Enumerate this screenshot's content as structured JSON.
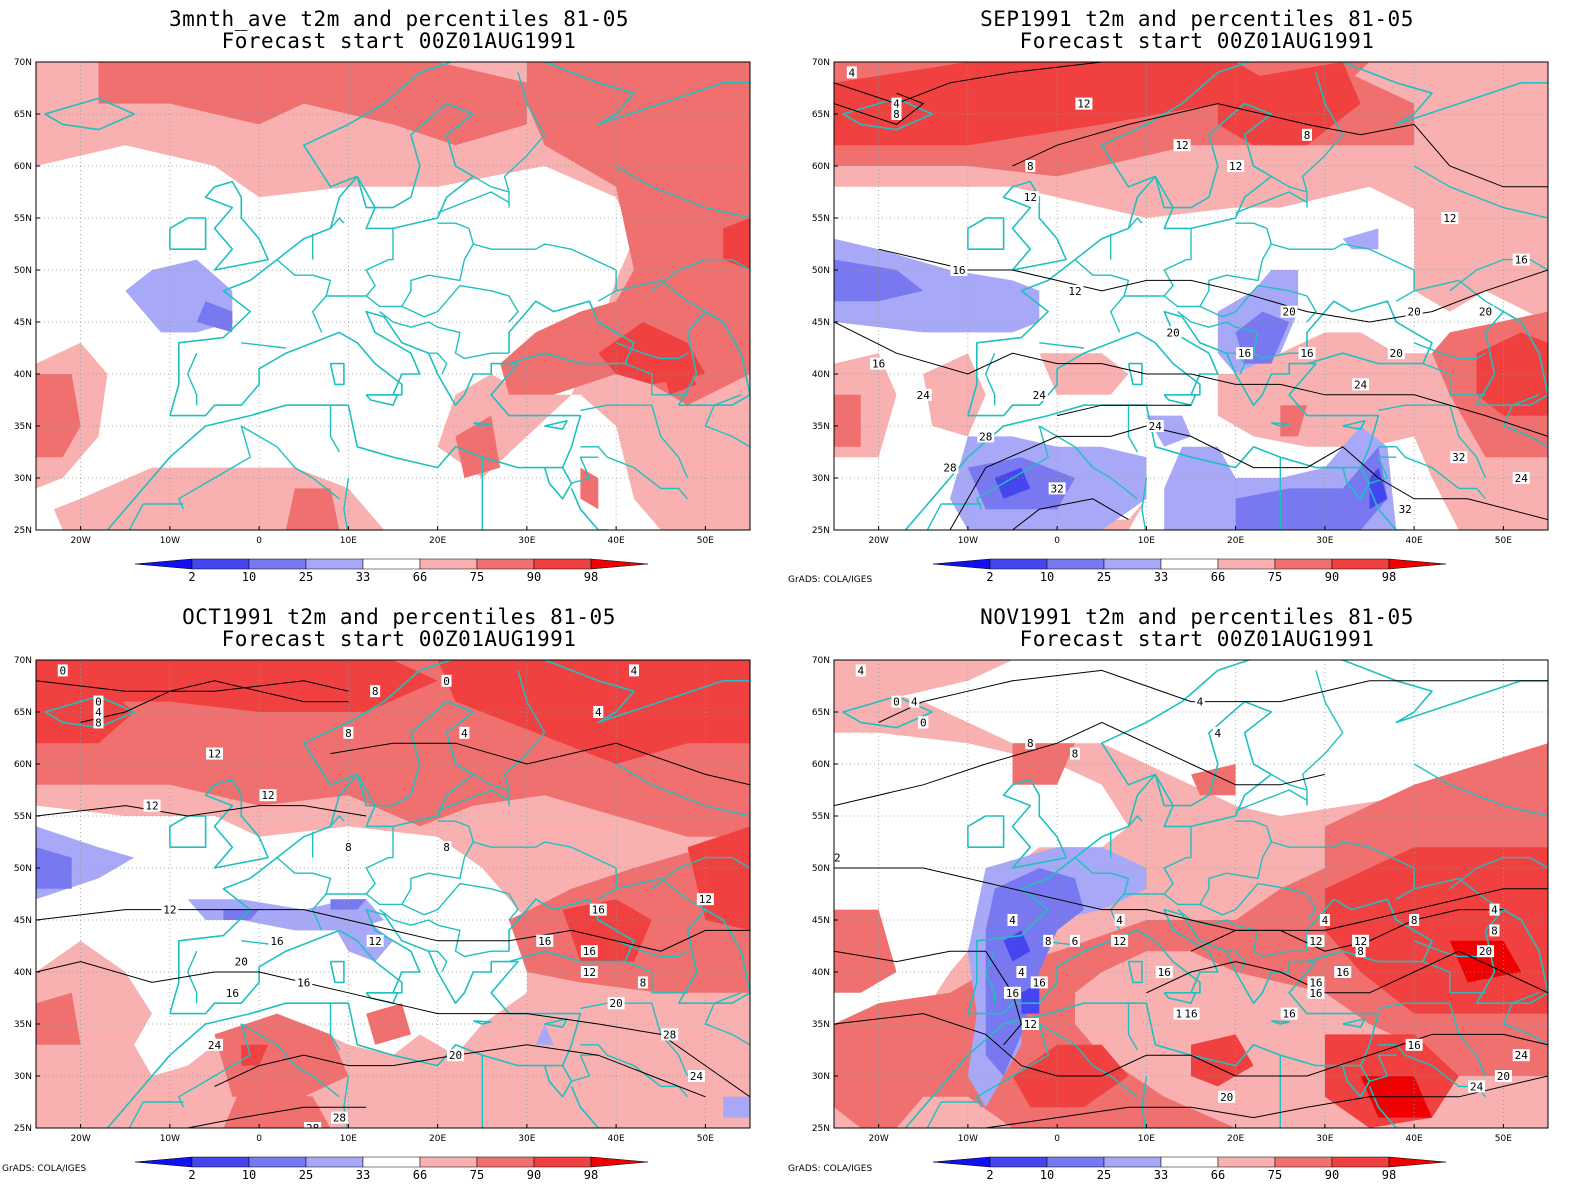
{
  "colors": {
    "coast": "#20c0c0",
    "below_2": "#1010f0",
    "p2_10": "#4646f0",
    "p10_25": "#7878f0",
    "p25_33": "#a8a8f8",
    "p66_75": "#f8b0b0",
    "p75_90": "#f07070",
    "p90_98": "#f04040",
    "above_98": "#f00000",
    "contour": "#000000",
    "grid": "#999999"
  },
  "axes": {
    "lat_labels": [
      "70N",
      "65N",
      "60N",
      "55N",
      "50N",
      "45N",
      "40N",
      "35N",
      "30N",
      "25N"
    ],
    "lon_labels": [
      "20W",
      "10W",
      "0",
      "10E",
      "20E",
      "30E",
      "40E",
      "50E"
    ]
  },
  "colorbar": {
    "labels": [
      "2",
      "10",
      "25",
      "33",
      "66",
      "75",
      "90",
      "98"
    ]
  },
  "credit_text": "GrADS: COLA/IGES",
  "panels": [
    {
      "id": "p1",
      "title_line1": "3mnth_ave t2m and percentiles 81-05",
      "title_line2": "Forecast start 00Z01AUG1991"
    },
    {
      "id": "p2",
      "title_line1": "SEP1991 t2m and percentiles 81-05",
      "title_line2": "Forecast start 00Z01AUG1991"
    },
    {
      "id": "p3",
      "title_line1": "OCT1991 t2m and percentiles 81-05",
      "title_line2": "Forecast start 00Z01AUG1991"
    },
    {
      "id": "p4",
      "title_line1": "NOV1991 t2m and percentiles 81-05",
      "title_line2": "Forecast start 00Z01AUG1991"
    }
  ],
  "contour_labels": {
    "p2": [
      "4",
      "4",
      "8",
      "12",
      "12",
      "8",
      "12",
      "8",
      "12",
      "12",
      "16",
      "16",
      "12",
      "20",
      "20",
      "20",
      "16",
      "20",
      "16",
      "16",
      "20",
      "24",
      "24",
      "24",
      "28",
      "24",
      "28",
      "32",
      "32",
      "24",
      "32"
    ],
    "p3": [
      "0",
      "0",
      "4",
      "8",
      "8",
      "0",
      "4",
      "4",
      "4",
      "8",
      "12",
      "12",
      "12",
      "8",
      "8",
      "12",
      "16",
      "12",
      "16",
      "12",
      "16",
      "16",
      "20",
      "16",
      "12",
      "8",
      "16",
      "20",
      "20",
      "24",
      "28",
      "24",
      "28",
      "28"
    ],
    "p4": [
      "4",
      "4",
      "0",
      "4",
      "4",
      "0",
      "4",
      "4",
      "8",
      "8",
      "12",
      "4",
      "8",
      "6",
      "4",
      "12",
      "4",
      "16",
      "12",
      "8",
      "16",
      "4",
      "8",
      "4",
      "12",
      "12",
      "8",
      "16",
      "20",
      "16",
      "12",
      "16",
      "16",
      "16",
      "16",
      "20",
      "24",
      "16",
      "20",
      "24"
    ]
  }
}
